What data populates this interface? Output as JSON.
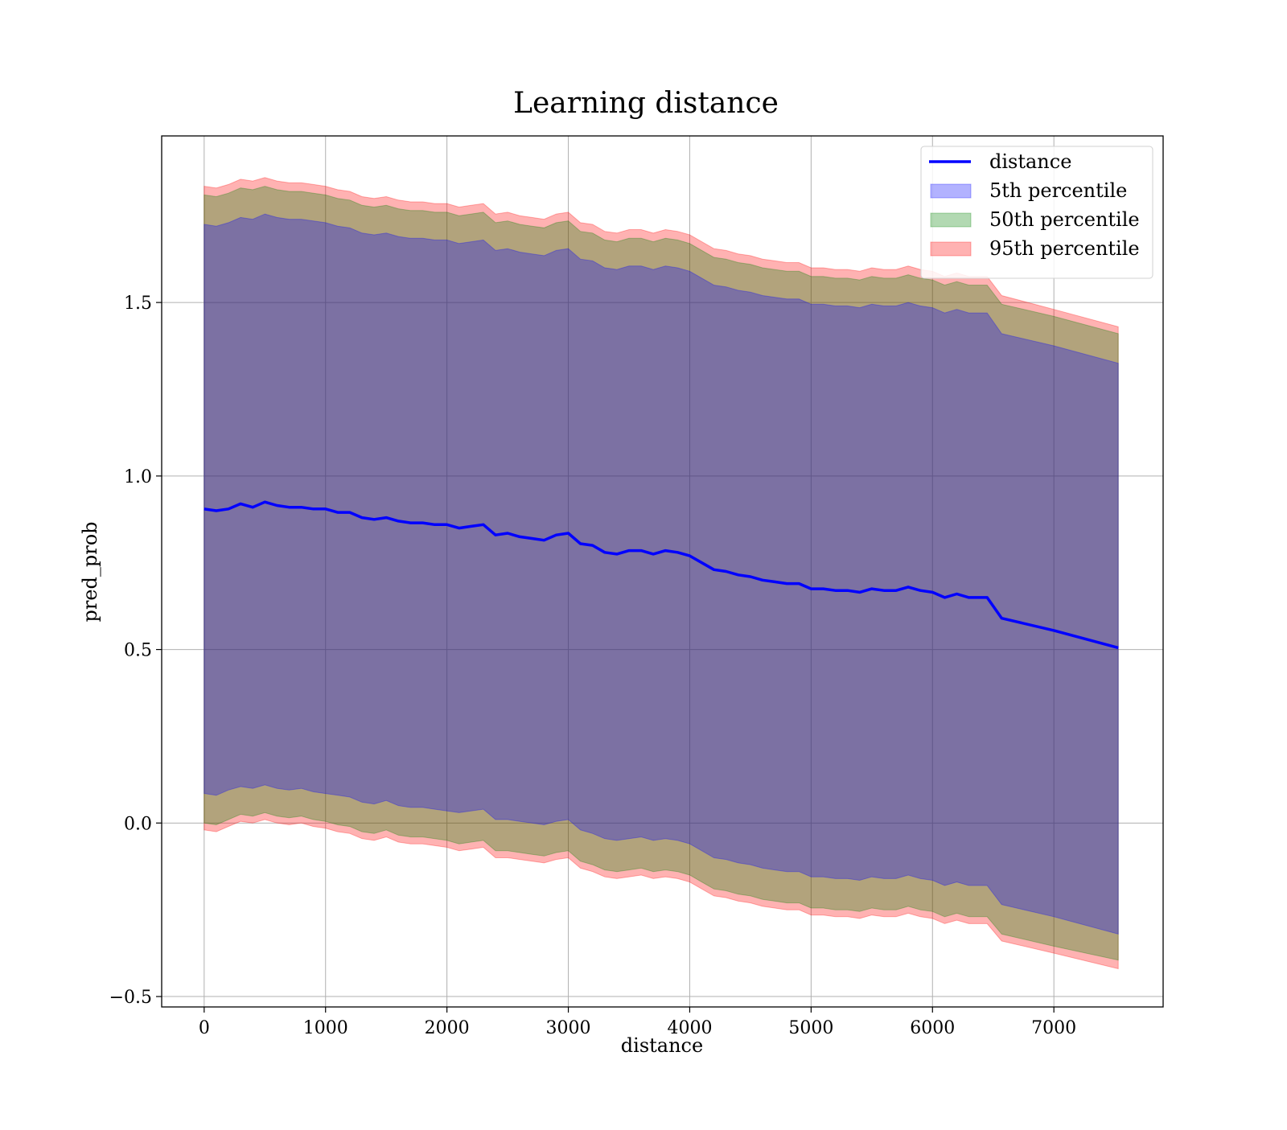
{
  "chart_data": {
    "type": "line",
    "title": "Learning distance",
    "xlabel": "distance",
    "ylabel": "pred_prob",
    "xlim": [
      -350,
      7900
    ],
    "ylim": [
      -0.53,
      1.98
    ],
    "xticks": [
      0,
      1000,
      2000,
      3000,
      4000,
      5000,
      6000,
      7000
    ],
    "xtick_labels": [
      "0",
      "1000",
      "2000",
      "3000",
      "4000",
      "5000",
      "6000",
      "7000"
    ],
    "yticks": [
      -0.5,
      0.0,
      0.5,
      1.0,
      1.5
    ],
    "ytick_labels": [
      "−0.5",
      "0.0",
      "0.5",
      "1.0",
      "1.5"
    ],
    "grid": true,
    "legend_position": "top-right",
    "colors": {
      "line": "#0000ff",
      "p5": "#0000ff",
      "p50": "#008000",
      "p95": "#ff0000"
    },
    "legend": [
      {
        "label": "distance",
        "kind": "line",
        "color": "#0000ff"
      },
      {
        "label": "5th percentile",
        "kind": "patch",
        "color": "#0000ff"
      },
      {
        "label": "50th percentile",
        "kind": "patch",
        "color": "#008000"
      },
      {
        "label": "95th percentile",
        "kind": "patch",
        "color": "#ff0000"
      }
    ],
    "x": [
      0,
      100,
      200,
      300,
      400,
      500,
      600,
      700,
      800,
      900,
      1000,
      1100,
      1200,
      1300,
      1400,
      1500,
      1600,
      1700,
      1800,
      1900,
      2000,
      2100,
      2200,
      2300,
      2400,
      2500,
      2600,
      2700,
      2800,
      2900,
      3000,
      3100,
      3200,
      3300,
      3400,
      3500,
      3600,
      3700,
      3800,
      3900,
      4000,
      4100,
      4200,
      4300,
      4400,
      4500,
      4600,
      4700,
      4800,
      4900,
      5000,
      5100,
      5200,
      5300,
      5400,
      5500,
      5600,
      5700,
      5800,
      5900,
      6000,
      6100,
      6200,
      6300,
      6450,
      6570,
      7000,
      7530
    ],
    "series": [
      {
        "name": "distance",
        "values": [
          0.905,
          0.9,
          0.905,
          0.92,
          0.91,
          0.925,
          0.915,
          0.91,
          0.91,
          0.905,
          0.905,
          0.895,
          0.895,
          0.88,
          0.875,
          0.88,
          0.87,
          0.865,
          0.865,
          0.86,
          0.86,
          0.85,
          0.855,
          0.86,
          0.83,
          0.835,
          0.825,
          0.82,
          0.815,
          0.83,
          0.835,
          0.805,
          0.8,
          0.78,
          0.775,
          0.785,
          0.785,
          0.775,
          0.785,
          0.78,
          0.77,
          0.75,
          0.73,
          0.725,
          0.715,
          0.71,
          0.7,
          0.695,
          0.69,
          0.69,
          0.675,
          0.675,
          0.67,
          0.67,
          0.665,
          0.675,
          0.67,
          0.67,
          0.68,
          0.67,
          0.665,
          0.65,
          0.66,
          0.65,
          0.65,
          0.59,
          0.555,
          0.505
        ]
      },
      {
        "name": "5th percentile",
        "lower": [
          0.085,
          0.08,
          0.095,
          0.105,
          0.1,
          0.11,
          0.1,
          0.095,
          0.1,
          0.09,
          0.085,
          0.08,
          0.075,
          0.06,
          0.055,
          0.065,
          0.05,
          0.045,
          0.045,
          0.04,
          0.035,
          0.03,
          0.035,
          0.04,
          0.01,
          0.01,
          0.005,
          0.0,
          -0.005,
          0.005,
          0.01,
          -0.02,
          -0.03,
          -0.045,
          -0.05,
          -0.045,
          -0.04,
          -0.05,
          -0.045,
          -0.05,
          -0.06,
          -0.08,
          -0.1,
          -0.105,
          -0.115,
          -0.12,
          -0.13,
          -0.135,
          -0.14,
          -0.14,
          -0.155,
          -0.155,
          -0.16,
          -0.16,
          -0.165,
          -0.155,
          -0.16,
          -0.16,
          -0.15,
          -0.16,
          -0.165,
          -0.18,
          -0.17,
          -0.18,
          -0.18,
          -0.235,
          -0.27,
          -0.32
        ],
        "upper": [
          1.725,
          1.72,
          1.73,
          1.745,
          1.74,
          1.755,
          1.745,
          1.74,
          1.74,
          1.735,
          1.73,
          1.72,
          1.715,
          1.7,
          1.695,
          1.7,
          1.69,
          1.685,
          1.685,
          1.68,
          1.68,
          1.67,
          1.675,
          1.68,
          1.65,
          1.655,
          1.645,
          1.64,
          1.635,
          1.65,
          1.655,
          1.625,
          1.62,
          1.6,
          1.595,
          1.605,
          1.605,
          1.595,
          1.605,
          1.6,
          1.59,
          1.57,
          1.55,
          1.545,
          1.535,
          1.53,
          1.52,
          1.515,
          1.51,
          1.51,
          1.495,
          1.495,
          1.49,
          1.49,
          1.485,
          1.495,
          1.49,
          1.49,
          1.5,
          1.49,
          1.485,
          1.47,
          1.48,
          1.47,
          1.47,
          1.41,
          1.375,
          1.325
        ]
      },
      {
        "name": "50th percentile",
        "lower": [
          0.0,
          -0.005,
          0.01,
          0.025,
          0.02,
          0.03,
          0.02,
          0.015,
          0.02,
          0.01,
          0.005,
          -0.005,
          -0.01,
          -0.025,
          -0.03,
          -0.02,
          -0.035,
          -0.04,
          -0.04,
          -0.045,
          -0.05,
          -0.06,
          -0.055,
          -0.05,
          -0.08,
          -0.08,
          -0.085,
          -0.09,
          -0.095,
          -0.085,
          -0.08,
          -0.11,
          -0.12,
          -0.135,
          -0.14,
          -0.135,
          -0.13,
          -0.14,
          -0.135,
          -0.14,
          -0.15,
          -0.17,
          -0.19,
          -0.195,
          -0.205,
          -0.21,
          -0.22,
          -0.225,
          -0.23,
          -0.23,
          -0.245,
          -0.245,
          -0.25,
          -0.25,
          -0.255,
          -0.245,
          -0.25,
          -0.25,
          -0.24,
          -0.25,
          -0.255,
          -0.27,
          -0.26,
          -0.27,
          -0.27,
          -0.32,
          -0.355,
          -0.395
        ],
        "upper": [
          1.81,
          1.805,
          1.815,
          1.83,
          1.825,
          1.835,
          1.825,
          1.82,
          1.82,
          1.815,
          1.81,
          1.8,
          1.795,
          1.78,
          1.775,
          1.78,
          1.77,
          1.765,
          1.765,
          1.76,
          1.76,
          1.75,
          1.755,
          1.76,
          1.73,
          1.735,
          1.725,
          1.72,
          1.715,
          1.73,
          1.735,
          1.705,
          1.7,
          1.68,
          1.675,
          1.685,
          1.685,
          1.675,
          1.685,
          1.68,
          1.67,
          1.65,
          1.63,
          1.625,
          1.615,
          1.61,
          1.6,
          1.595,
          1.59,
          1.59,
          1.575,
          1.575,
          1.57,
          1.57,
          1.565,
          1.575,
          1.57,
          1.57,
          1.58,
          1.57,
          1.565,
          1.55,
          1.56,
          1.55,
          1.55,
          1.495,
          1.46,
          1.41
        ]
      },
      {
        "name": "95th percentile",
        "lower": [
          -0.02,
          -0.025,
          -0.01,
          0.005,
          0.0,
          0.01,
          0.0,
          -0.005,
          0.0,
          -0.01,
          -0.015,
          -0.025,
          -0.03,
          -0.045,
          -0.05,
          -0.04,
          -0.055,
          -0.06,
          -0.06,
          -0.065,
          -0.07,
          -0.08,
          -0.075,
          -0.07,
          -0.1,
          -0.1,
          -0.105,
          -0.11,
          -0.115,
          -0.105,
          -0.1,
          -0.13,
          -0.14,
          -0.155,
          -0.16,
          -0.155,
          -0.15,
          -0.16,
          -0.155,
          -0.16,
          -0.17,
          -0.19,
          -0.21,
          -0.215,
          -0.225,
          -0.23,
          -0.24,
          -0.245,
          -0.25,
          -0.25,
          -0.265,
          -0.265,
          -0.27,
          -0.27,
          -0.275,
          -0.265,
          -0.27,
          -0.27,
          -0.26,
          -0.27,
          -0.275,
          -0.29,
          -0.28,
          -0.29,
          -0.29,
          -0.34,
          -0.375,
          -0.42
        ],
        "upper": [
          1.835,
          1.83,
          1.84,
          1.855,
          1.85,
          1.86,
          1.85,
          1.845,
          1.845,
          1.84,
          1.835,
          1.825,
          1.82,
          1.805,
          1.8,
          1.805,
          1.795,
          1.79,
          1.79,
          1.785,
          1.785,
          1.775,
          1.78,
          1.785,
          1.755,
          1.76,
          1.75,
          1.745,
          1.74,
          1.755,
          1.76,
          1.73,
          1.725,
          1.705,
          1.7,
          1.71,
          1.71,
          1.7,
          1.71,
          1.705,
          1.695,
          1.675,
          1.655,
          1.65,
          1.64,
          1.635,
          1.625,
          1.62,
          1.615,
          1.615,
          1.6,
          1.6,
          1.595,
          1.595,
          1.59,
          1.6,
          1.595,
          1.595,
          1.605,
          1.595,
          1.59,
          1.575,
          1.585,
          1.575,
          1.575,
          1.52,
          1.48,
          1.43
        ]
      }
    ]
  }
}
